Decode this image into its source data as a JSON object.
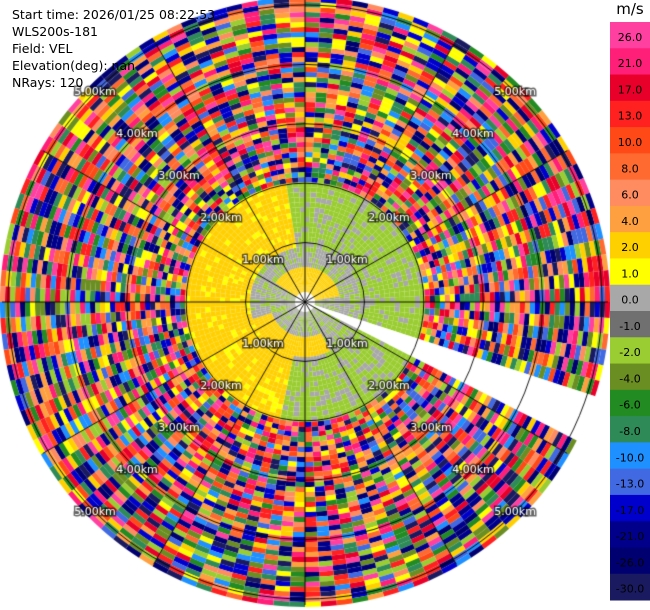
{
  "info": {
    "start_time": "Start time: 2026/01/25 08:22:53",
    "instrument": "WLS200s-181",
    "field": "Field: VEL",
    "elevation": "Elevation(deg): nan",
    "nrays": "NRays: 120"
  },
  "colorbar": {
    "unit": "m/s",
    "levels": [
      "26.0",
      "21.0",
      "17.0",
      "13.0",
      "10.0",
      "8.0",
      "6.0",
      "4.0",
      "2.0",
      "1.0",
      "0.0",
      "-1.0",
      "-2.0",
      "-4.0",
      "-6.0",
      "-8.0",
      "-10.0",
      "-13.0",
      "-17.0",
      "-21.0",
      "-26.0",
      "-30.0"
    ],
    "colors": [
      "#ff40a0",
      "#ff1e78",
      "#e8002a",
      "#ff2020",
      "#ff4a18",
      "#ff6a30",
      "#ff8c60",
      "#ffa040",
      "#ffd000",
      "#ffff00",
      "#a8a8a8",
      "#707070",
      "#9acd32",
      "#6b8e23",
      "#228b22",
      "#2e8b57",
      "#1e90ff",
      "#4169e1",
      "#0000cd",
      "#00008b",
      "#000070",
      "#1a1a60"
    ]
  },
  "chart_data": {
    "type": "ppi",
    "field": "VEL",
    "units": "m/s",
    "nrays": 120,
    "range_rings_km": [
      1.0,
      2.0,
      3.0,
      4.0,
      5.0
    ],
    "ring_labels": [
      "1.00km",
      "2.00km",
      "3.00km",
      "4.00km",
      "5.00km"
    ],
    "max_range_km": 5.1,
    "missing_sector_deg": [
      108,
      116
    ],
    "inner_region": {
      "description_range_km": 2.0,
      "west_value": 4.0,
      "northeast_value": -1.0,
      "core_value": 0.0
    },
    "outer_region": {
      "from_km": 2.0,
      "to_km": 5.1,
      "noise": true
    }
  }
}
